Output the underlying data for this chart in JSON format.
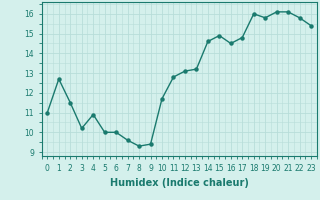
{
  "x": [
    0,
    1,
    2,
    3,
    4,
    5,
    6,
    7,
    8,
    9,
    10,
    11,
    12,
    13,
    14,
    15,
    16,
    17,
    18,
    19,
    20,
    21,
    22,
    23
  ],
  "y": [
    11.0,
    12.7,
    11.5,
    10.2,
    10.9,
    10.0,
    10.0,
    9.6,
    9.3,
    9.4,
    11.7,
    12.8,
    13.1,
    13.2,
    14.6,
    14.9,
    14.5,
    14.8,
    16.0,
    15.8,
    16.1,
    16.1,
    15.8,
    15.4
  ],
  "line_color": "#1a7a6e",
  "marker_color": "#1a7a6e",
  "bg_color": "#d4f0ec",
  "grid_color": "#b8ddd9",
  "xlabel": "Humidex (Indice chaleur)",
  "ylim": [
    8.8,
    16.6
  ],
  "xlim": [
    -0.5,
    23.5
  ],
  "yticks": [
    9,
    10,
    11,
    12,
    13,
    14,
    15,
    16
  ],
  "xticks": [
    0,
    1,
    2,
    3,
    4,
    5,
    6,
    7,
    8,
    9,
    10,
    11,
    12,
    13,
    14,
    15,
    16,
    17,
    18,
    19,
    20,
    21,
    22,
    23
  ],
  "tick_fontsize": 5.5,
  "xlabel_fontsize": 7.0,
  "marker_size": 2.2,
  "line_width": 1.0
}
